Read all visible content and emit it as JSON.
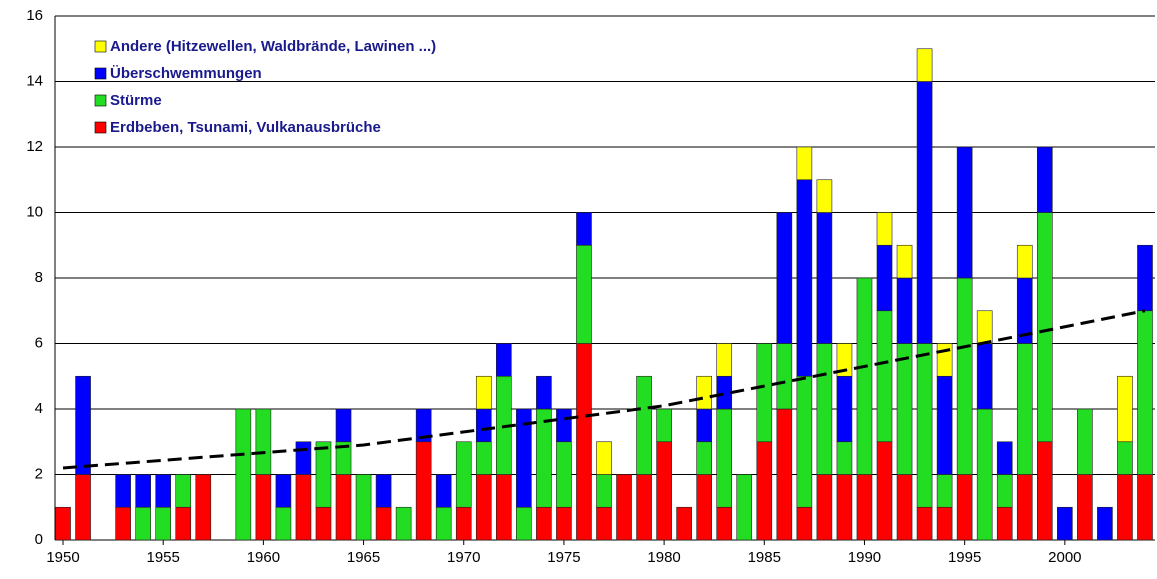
{
  "chart_data": {
    "type": "bar",
    "stacked": true,
    "x": [
      1950,
      1951,
      1952,
      1953,
      1954,
      1955,
      1956,
      1957,
      1958,
      1959,
      1960,
      1961,
      1962,
      1963,
      1964,
      1965,
      1966,
      1967,
      1968,
      1969,
      1970,
      1971,
      1972,
      1973,
      1974,
      1975,
      1976,
      1977,
      1978,
      1979,
      1980,
      1981,
      1982,
      1983,
      1984,
      1985,
      1986,
      1987,
      1988,
      1989,
      1990,
      1991,
      1992,
      1993,
      1994,
      1995,
      1996,
      1997,
      1998,
      1999,
      2000,
      2001,
      2002,
      2003,
      2004
    ],
    "series": [
      {
        "name": "Erdbeben, Tsunami, Vulkanausbrüche",
        "color": "#ff0000",
        "values": [
          1,
          2,
          0,
          1,
          0,
          0,
          1,
          2,
          0,
          0,
          2,
          0,
          2,
          1,
          2,
          0,
          1,
          0,
          3,
          0,
          1,
          2,
          2,
          0,
          1,
          1,
          6,
          1,
          2,
          2,
          3,
          1,
          2,
          1,
          0,
          3,
          4,
          1,
          2,
          2,
          2,
          3,
          2,
          1,
          1,
          2,
          0,
          1,
          2,
          3,
          0,
          2,
          0,
          2,
          2
        ]
      },
      {
        "name": "Stürme",
        "color": "#22dd22",
        "values": [
          0,
          0,
          0,
          0,
          1,
          1,
          1,
          0,
          0,
          4,
          2,
          1,
          0,
          2,
          1,
          2,
          0,
          1,
          0,
          1,
          2,
          1,
          3,
          1,
          3,
          2,
          3,
          1,
          0,
          3,
          1,
          0,
          1,
          3,
          2,
          3,
          2,
          4,
          4,
          1,
          6,
          4,
          4,
          5,
          1,
          6,
          4,
          1,
          4,
          7,
          0,
          2,
          0,
          1,
          5
        ]
      },
      {
        "name": "Überschwemmungen",
        "color": "#0000ff",
        "values": [
          0,
          3,
          0,
          1,
          1,
          1,
          0,
          0,
          0,
          0,
          0,
          1,
          1,
          0,
          1,
          0,
          1,
          0,
          1,
          1,
          0,
          1,
          1,
          3,
          1,
          1,
          1,
          0,
          0,
          0,
          0,
          0,
          1,
          1,
          0,
          0,
          4,
          6,
          4,
          2,
          0,
          2,
          2,
          8,
          3,
          4,
          2,
          1,
          2,
          2,
          1,
          0,
          1,
          0,
          2
        ]
      },
      {
        "name": "Andere (Hitzewellen, Waldbrände, Lawinen ...)",
        "color": "#ffff00",
        "values": [
          0,
          0,
          0,
          0,
          0,
          0,
          0,
          0,
          0,
          0,
          0,
          0,
          0,
          0,
          0,
          0,
          0,
          0,
          0,
          0,
          0,
          1,
          0,
          0,
          0,
          0,
          0,
          1,
          0,
          0,
          0,
          0,
          1,
          1,
          0,
          0,
          0,
          1,
          1,
          1,
          0,
          1,
          1,
          1,
          1,
          0,
          1,
          0,
          1,
          0,
          0,
          0,
          0,
          2,
          0
        ]
      }
    ],
    "trend": {
      "x": [
        1950,
        1965,
        1980,
        1995,
        2004
      ],
      "values": [
        2.2,
        2.9,
        4.1,
        5.9,
        7.0
      ]
    },
    "xlim": [
      1949.6,
      2004.5
    ],
    "xticks": [
      1950,
      1955,
      1960,
      1965,
      1970,
      1975,
      1980,
      1985,
      1990,
      1995,
      2000
    ],
    "ylim": [
      0,
      16
    ],
    "yticks": [
      0,
      2,
      4,
      6,
      8,
      10,
      12,
      14,
      16
    ],
    "grid": true,
    "legend": "upper left"
  }
}
